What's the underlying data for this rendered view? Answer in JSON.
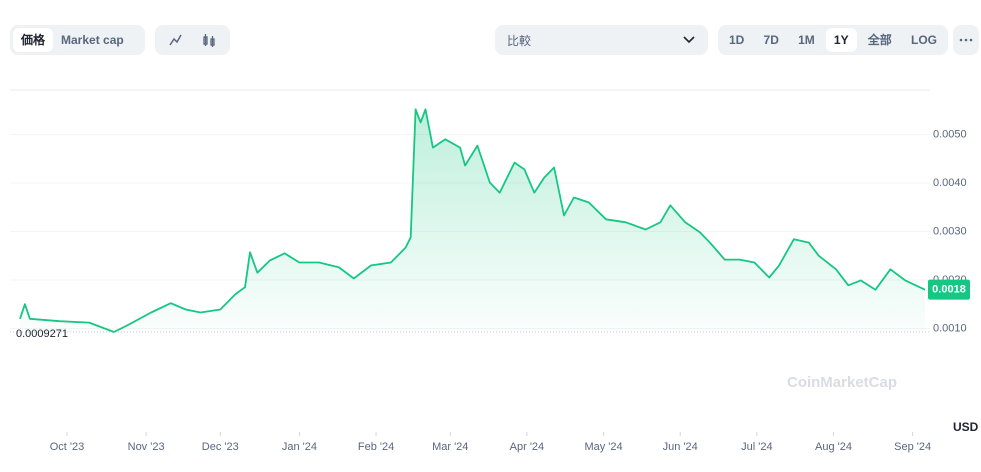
{
  "toolbar": {
    "tabs": [
      "価格",
      "Market cap"
    ],
    "compare": "比較",
    "ranges": [
      "1D",
      "7D",
      "1M",
      "1Y",
      "全部",
      "LOG"
    ],
    "active_range": "1Y"
  },
  "chart_data": {
    "type": "line",
    "y_unit": "USD",
    "watermark": "CoinMarketCap",
    "color": "#16c784",
    "x": [
      0,
      2,
      4,
      16,
      28,
      38,
      44,
      53,
      61,
      67,
      73,
      81,
      87,
      91,
      93,
      96,
      101,
      107,
      113,
      121,
      129,
      135,
      142,
      150,
      156,
      158,
      160,
      162,
      164,
      167,
      172,
      178,
      180,
      185,
      190,
      194,
      200,
      204,
      208,
      212,
      216,
      220,
      224,
      230,
      237,
      245,
      253,
      259,
      263,
      269,
      275,
      279,
      285,
      291,
      297,
      303,
      307,
      313,
      319,
      323,
      330,
      335,
      340,
      346,
      352,
      358,
      366
    ],
    "values": [
      0.0012,
      0.0015,
      0.0012,
      0.00115,
      0.00112,
      0.0009271,
      0.00108,
      0.00133,
      0.00152,
      0.00139,
      0.00133,
      0.00139,
      0.0017,
      0.00185,
      0.00257,
      0.00215,
      0.0024,
      0.00255,
      0.00236,
      0.00236,
      0.00226,
      0.00203,
      0.0023,
      0.00236,
      0.00267,
      0.00288,
      0.00552,
      0.00525,
      0.00552,
      0.00473,
      0.0049,
      0.00473,
      0.00436,
      0.00477,
      0.00401,
      0.0038,
      0.00442,
      0.00428,
      0.0038,
      0.00411,
      0.00432,
      0.00333,
      0.0037,
      0.0036,
      0.00325,
      0.00319,
      0.00304,
      0.00319,
      0.00354,
      0.00319,
      0.00298,
      0.00277,
      0.00242,
      0.00242,
      0.00236,
      0.00205,
      0.0023,
      0.00284,
      0.00277,
      0.0025,
      0.00222,
      0.00189,
      0.00199,
      0.0018,
      0.00222,
      0.00199,
      0.0018
    ],
    "min_index": 5,
    "xlim": [
      0,
      366
    ],
    "xticks": [
      {
        "value": 19,
        "label": "Oct '23"
      },
      {
        "value": 51,
        "label": "Nov '23"
      },
      {
        "value": 81,
        "label": "Dec '23"
      },
      {
        "value": 113,
        "label": "Jan '24"
      },
      {
        "value": 144,
        "label": "Feb '24"
      },
      {
        "value": 174,
        "label": "Mar '24"
      },
      {
        "value": 205,
        "label": "Apr '24"
      },
      {
        "value": 236,
        "label": "May '24"
      },
      {
        "value": 267,
        "label": "Jun '24"
      },
      {
        "value": 298,
        "label": "Jul '24"
      },
      {
        "value": 329,
        "label": "Aug '24"
      },
      {
        "value": 361,
        "label": "Sep '24"
      }
    ],
    "ylim": [
      0.0007,
      0.006
    ],
    "yticks": [
      {
        "value": 0.001,
        "label": "0.0010"
      },
      {
        "value": 0.002,
        "label": "0.0020"
      },
      {
        "value": 0.003,
        "label": "0.0030"
      },
      {
        "value": 0.004,
        "label": "0.0040"
      },
      {
        "value": 0.005,
        "label": "0.0050"
      }
    ]
  }
}
